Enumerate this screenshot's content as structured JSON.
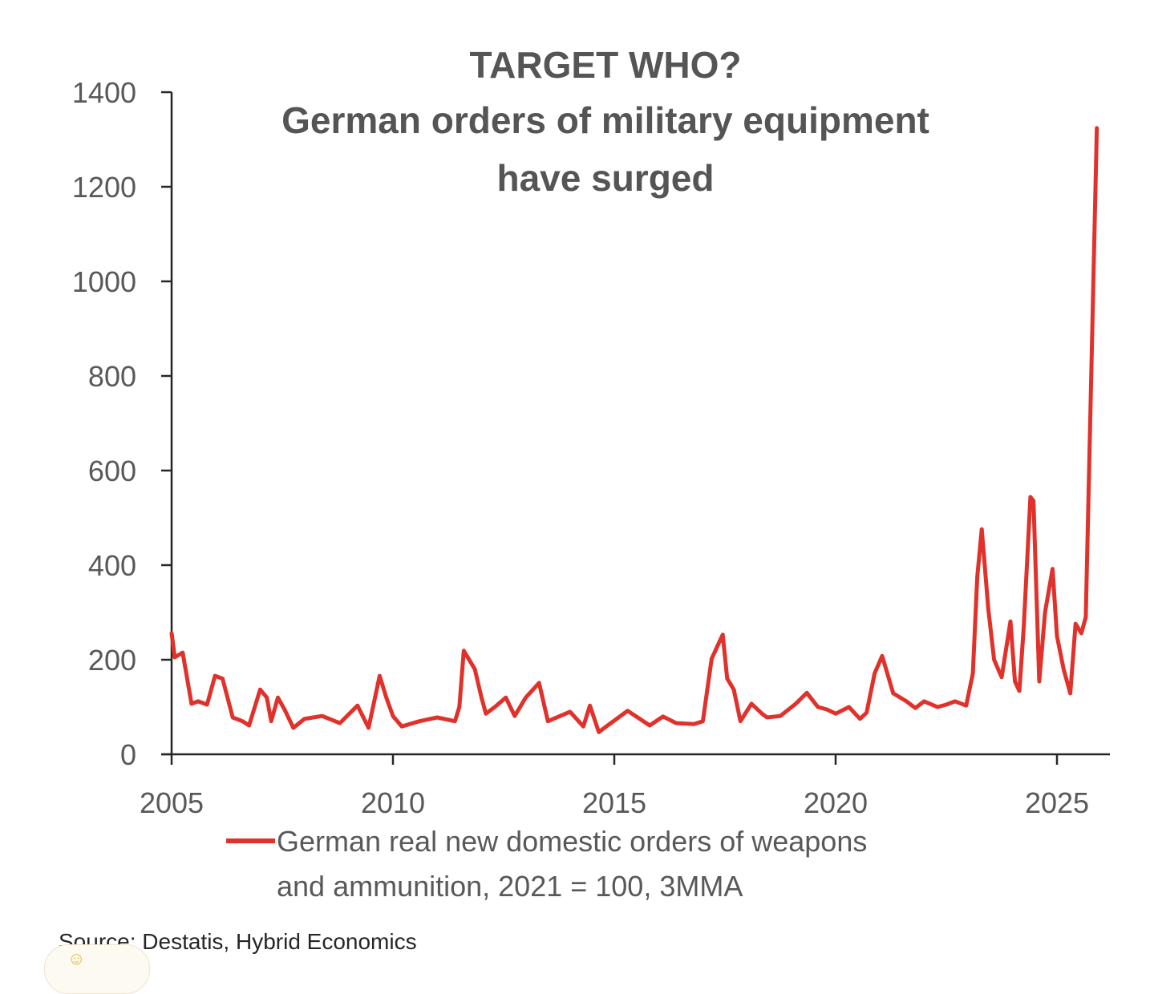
{
  "chart_data": {
    "type": "line",
    "title": [
      "TARGET WHO?",
      "German orders of military equipment",
      "have surged"
    ],
    "xlabel": "",
    "ylabel": "",
    "xlim": [
      2005,
      2026.2
    ],
    "ylim": [
      0,
      1400
    ],
    "yticks": [
      0,
      200,
      400,
      600,
      800,
      1000,
      1200,
      1400
    ],
    "xticks": [
      2005,
      2010,
      2015,
      2020,
      2025
    ],
    "grid": false,
    "legend": {
      "placement": "bottom",
      "entries": [
        "German real new domestic orders of weapons and ammunition, 2021 = 100, 3MMA"
      ]
    },
    "legend_lines": [
      "German real new domestic orders of weapons",
      "and ammunition, 2021 = 100, 3MMA"
    ],
    "source": "Source: Destatis, Hybrid Economics",
    "series": [
      {
        "name": "German real new domestic orders of weapons and ammunition, 2021 = 100, 3MMA",
        "color": "#e0312b",
        "x": [
          2005.0,
          2005.07,
          2005.25,
          2005.45,
          2005.6,
          2005.8,
          2005.98,
          2006.15,
          2006.38,
          2006.6,
          2006.75,
          2007.0,
          2007.15,
          2007.25,
          2007.4,
          2007.55,
          2007.75,
          2008.0,
          2008.4,
          2008.8,
          2009.2,
          2009.45,
          2009.7,
          2009.85,
          2010.0,
          2010.2,
          2010.6,
          2011.0,
          2011.4,
          2011.5,
          2011.6,
          2011.85,
          2012.0,
          2012.1,
          2012.3,
          2012.55,
          2012.75,
          2013.0,
          2013.3,
          2013.5,
          2014.0,
          2014.3,
          2014.45,
          2014.65,
          2014.85,
          2015.3,
          2015.8,
          2016.1,
          2016.4,
          2016.8,
          2017.0,
          2017.2,
          2017.45,
          2017.55,
          2017.7,
          2017.85,
          2018.1,
          2018.35,
          2018.45,
          2018.75,
          2019.1,
          2019.35,
          2019.6,
          2019.8,
          2020.0,
          2020.3,
          2020.55,
          2020.7,
          2020.88,
          2021.05,
          2021.3,
          2021.6,
          2021.8,
          2022.0,
          2022.3,
          2022.5,
          2022.7,
          2022.95,
          2023.1,
          2023.2,
          2023.3,
          2023.45,
          2023.58,
          2023.75,
          2023.95,
          2024.05,
          2024.15,
          2024.25,
          2024.4,
          2024.47,
          2024.6,
          2024.73,
          2024.9,
          2025.0,
          2025.15,
          2025.3,
          2025.42,
          2025.55,
          2025.65,
          2025.75,
          2025.9
        ],
        "values": [
          256,
          205,
          215,
          107,
          112,
          105,
          166,
          160,
          78,
          70,
          61,
          137,
          120,
          70,
          120,
          95,
          56,
          75,
          81,
          66,
          103,
          56,
          166,
          120,
          81,
          59,
          70,
          78,
          70,
          100,
          219,
          180,
          120,
          86,
          100,
          120,
          81,
          120,
          151,
          70,
          90,
          59,
          103,
          47,
          61,
          92,
          61,
          80,
          66,
          64,
          70,
          202,
          253,
          160,
          137,
          70,
          107,
          85,
          78,
          81,
          107,
          130,
          100,
          95,
          86,
          100,
          75,
          88,
          171,
          208,
          129,
          112,
          98,
          112,
          100,
          105,
          112,
          103,
          171,
          375,
          476,
          307,
          200,
          163,
          281,
          154,
          134,
          270,
          544,
          536,
          154,
          300,
          392,
          250,
          180,
          129,
          276,
          256,
          290,
          700,
          1324
        ]
      }
    ]
  }
}
